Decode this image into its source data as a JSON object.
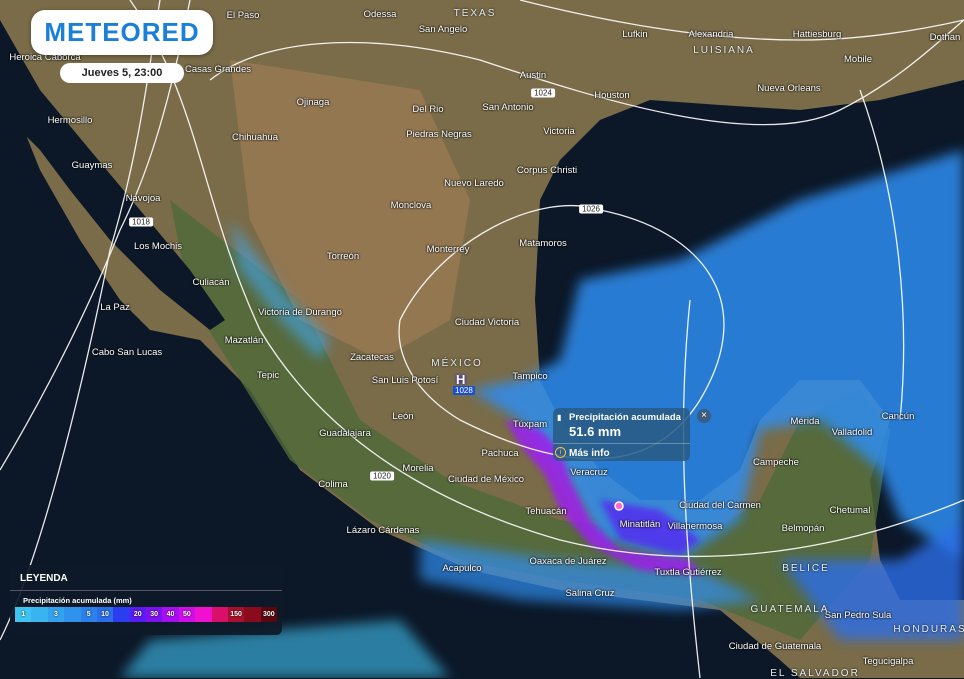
{
  "brand": {
    "logo": "METEORED",
    "date": "Jueves 5, 23:00"
  },
  "legend": {
    "title": "LEYENDA",
    "subtitle": "Precipitación acumulada (mm)",
    "scale": [
      {
        "label": "1",
        "color": "#3fc3f2"
      },
      {
        "label": "",
        "color": "#38b4f0"
      },
      {
        "label": "3",
        "color": "#33a3ee"
      },
      {
        "label": "",
        "color": "#2f92ec"
      },
      {
        "label": "5",
        "color": "#2b80ea"
      },
      {
        "label": "10",
        "color": "#2a6ee8"
      },
      {
        "label": "",
        "color": "#2c3cf0"
      },
      {
        "label": "20",
        "color": "#5a1cf2"
      },
      {
        "label": "30",
        "color": "#7d12f0"
      },
      {
        "label": "40",
        "color": "#a80ff0"
      },
      {
        "label": "50",
        "color": "#d00ee8"
      },
      {
        "label": "",
        "color": "#f010d0"
      },
      {
        "label": "",
        "color": "#d8106a"
      },
      {
        "label": "150",
        "color": "#a8102c"
      },
      {
        "label": "",
        "color": "#8a0c1c"
      },
      {
        "label": "300",
        "color": "#5a0810"
      }
    ]
  },
  "popup": {
    "title": "Precipitación acumulada",
    "value": "51.6 mm",
    "link": "Más info",
    "close": "×"
  },
  "pressure": {
    "high_symbol": "H",
    "high_value": "1028",
    "isobars": [
      "1018",
      "1020",
      "1024",
      "1026"
    ]
  },
  "colors": {
    "ocean": "#0c1828",
    "land": "#7a6c48",
    "rain": "#2f8df0",
    "heavy_rain": "#9b1ff0"
  },
  "places": [
    "El Paso",
    "Odessa",
    "San Angelo",
    "Lufkin",
    "Alexandria",
    "Hattiesburg",
    "Dothan",
    "Mobile",
    "Heroica Caborca",
    "Casas Grandes",
    "Austin",
    "Houston",
    "Nueva Orleans",
    "Ojinaga",
    "Del Rio",
    "San Antonio",
    "Hermosillo",
    "Chihuahua",
    "Piedras Negras",
    "Victoria",
    "Guaymas",
    "Corpus Christi",
    "Nuevo Laredo",
    "Navojoa",
    "Monclova",
    "Los Mochis",
    "Torreón",
    "Monterrey",
    "Matamoros",
    "Culiacán",
    "La Paz",
    "Victoria de Durango",
    "Ciudad Victoria",
    "Mazatlán",
    "Cabo San Lucas",
    "Zacatecas",
    "San Luis Potosí",
    "Tampico",
    "Tepic",
    "León",
    "Túxpam",
    "Guadalajara",
    "Pachuca",
    "Mérida",
    "Valladolid",
    "Cancún",
    "Morelia",
    "Ciudad de México",
    "Colima",
    "Veracruz",
    "Campeche",
    "Ciudad del Carmen",
    "Chetumal",
    "Tehuacán",
    "Minatitlán",
    "Villahermosa",
    "Lázaro Cárdenas",
    "Belmopán",
    "Acapulco",
    "Oaxaca de Juárez",
    "Tuxtla Gutiérrez",
    "San Pedro Sula",
    "Salina Cruz",
    "Ciudad de Guatemala",
    "Tegucigalpa"
  ],
  "regions": [
    "TEXAS",
    "LUISIANA",
    "MÉXICO",
    "BELICE",
    "GUATEMALA",
    "HONDURAS",
    "EL SALVADOR"
  ]
}
